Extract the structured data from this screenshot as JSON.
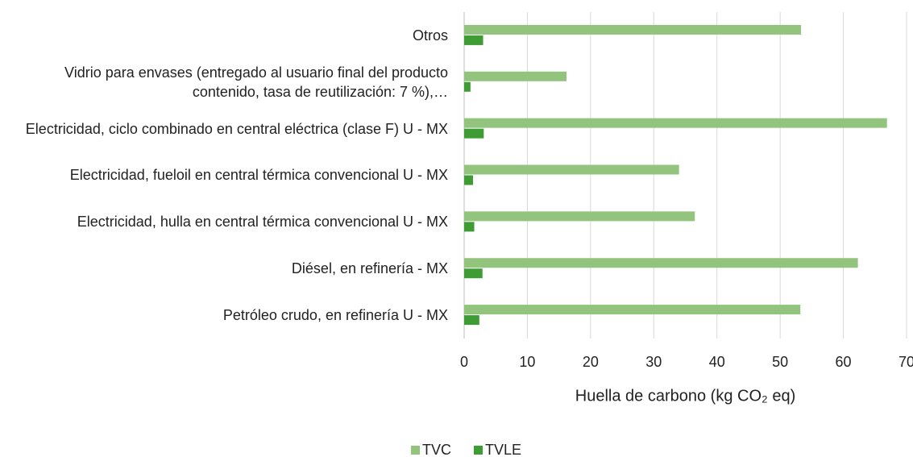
{
  "chart_data": {
    "type": "bar",
    "orientation": "horizontal",
    "categories": [
      "Otros",
      "Vidrio para envases (entregado al usuario final del producto contenido, tasa de reutilización: 7 %),…",
      "Electricidad, ciclo combinado en central eléctrica (clase F) U - MX",
      "Electricidad, fueloil en central térmica convencional U - MX",
      "Electricidad, hulla en central térmica convencional U - MX",
      "Diésel, en refinería - MX",
      "Petróleo crudo, en refinería U - MX"
    ],
    "series": [
      {
        "name": "TVC",
        "color": "#93c47d",
        "values": [
          53.3,
          16.2,
          66.9,
          34.0,
          36.5,
          62.3,
          53.2
        ]
      },
      {
        "name": "TVLE",
        "color": "#3f9c35",
        "values": [
          3.0,
          1.0,
          3.1,
          1.4,
          1.6,
          2.9,
          2.4
        ]
      }
    ],
    "x_label": "Huella de carbono (kg CO₂ eq)",
    "xlim": [
      0,
      70
    ],
    "xticks": [
      0,
      10,
      20,
      30,
      40,
      50,
      60,
      70
    ],
    "grid": true,
    "legend": "bottom"
  }
}
